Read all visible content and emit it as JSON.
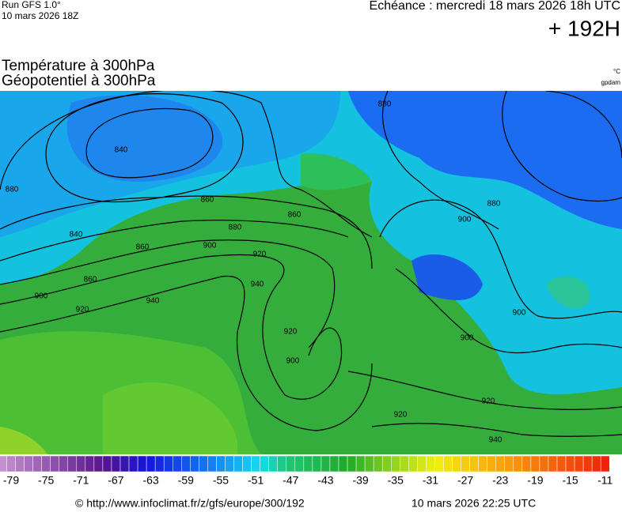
{
  "header": {
    "model": "Run GFS 1.0°",
    "run": "10 mars 2026 18Z",
    "valid": "Echéance : mercredi 18 mars 2026 18h UTC",
    "lead": "+ 192H"
  },
  "title": {
    "line1": "Température à 300hPa",
    "line2": "Géopotentiel à 300hPa"
  },
  "units": {
    "temperature": "°C",
    "geopotential": "gpdam"
  },
  "map": {
    "contour_labels": [
      880,
      840,
      860,
      860,
      840,
      880,
      860,
      900,
      920,
      860,
      900,
      940,
      920,
      940,
      880,
      880,
      900,
      900,
      920,
      900,
      900,
      920,
      920,
      940
    ]
  },
  "colorbar": {
    "ticks": [
      -79,
      -75,
      -71,
      -67,
      -63,
      -59,
      -55,
      -51,
      -47,
      -43,
      -39,
      -35,
      -31,
      -27,
      -23,
      -19,
      -15,
      -11
    ]
  },
  "footer": {
    "source": "© http://www.infoclimat.fr/z/gfs/europe/300/192",
    "generated": "10 mars 2026 22:25 UTC"
  }
}
